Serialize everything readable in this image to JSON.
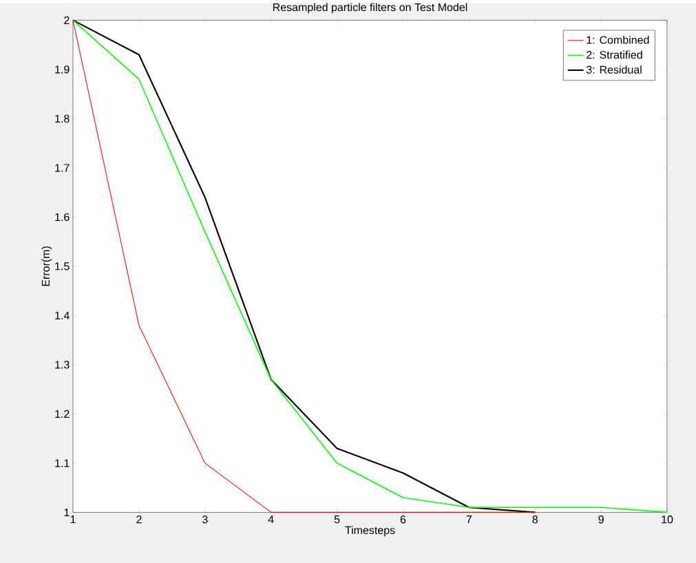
{
  "chart_data": {
    "type": "line",
    "title": "Resampled particle filters on Test Model",
    "xlabel": "Timesteps",
    "ylabel": "Error(m)",
    "x": [
      1,
      2,
      3,
      4,
      5,
      6,
      7,
      8,
      9,
      10
    ],
    "series": [
      {
        "name": "1: Combined",
        "color": "#ff0000",
        "values": [
          2.0,
          1.38,
          1.1,
          1.0,
          1.0,
          1.0,
          1.0,
          1.0,
          null,
          null
        ]
      },
      {
        "name": "2: Stratified",
        "color": "#00ff00",
        "values": [
          2.0,
          1.88,
          1.57,
          1.27,
          1.1,
          1.03,
          1.01,
          1.01,
          1.01,
          1.0
        ]
      },
      {
        "name": "3: Residual",
        "color": "#000000",
        "values": [
          2.0,
          1.93,
          1.64,
          1.27,
          1.13,
          1.08,
          1.01,
          1.0,
          null,
          null
        ]
      }
    ],
    "xlim": [
      1,
      10
    ],
    "ylim": [
      1,
      2
    ],
    "xticks": [
      1,
      2,
      3,
      4,
      5,
      6,
      7,
      8,
      9,
      10
    ],
    "yticks": [
      1,
      1.1,
      1.2,
      1.3,
      1.4,
      1.5,
      1.6,
      1.7,
      1.8,
      1.9,
      2
    ],
    "legend": "top right",
    "grid": false
  }
}
